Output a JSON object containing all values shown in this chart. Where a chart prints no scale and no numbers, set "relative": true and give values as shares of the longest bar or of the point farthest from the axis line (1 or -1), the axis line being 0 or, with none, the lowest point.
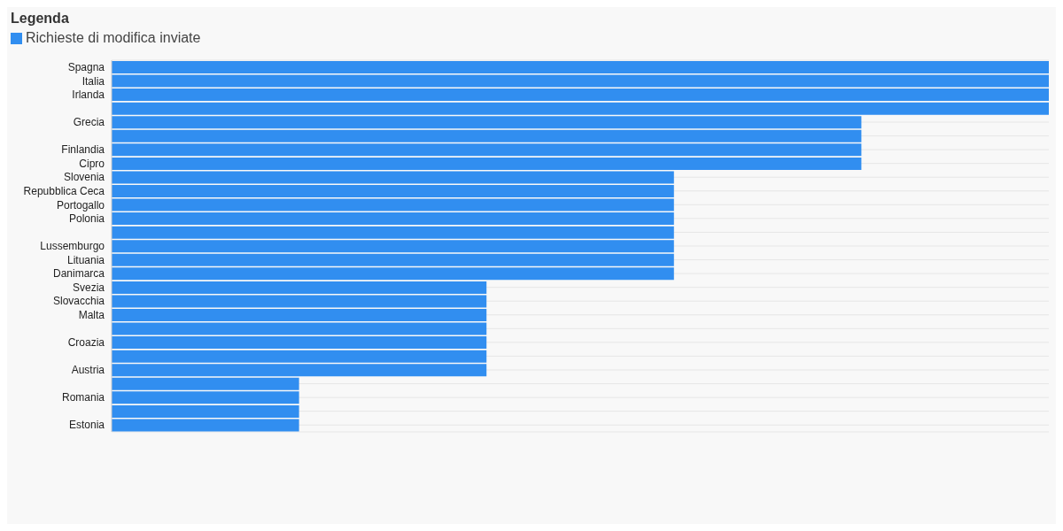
{
  "chart_data": {
    "type": "bar",
    "orientation": "horizontal",
    "relative": true,
    "legend_title": "Legenda",
    "legend": "top left",
    "grid": "y",
    "categories": [
      "Spagna",
      "Italia",
      "Irlanda",
      null,
      "Grecia",
      null,
      "Finlandia",
      "Cipro",
      "Slovenia",
      "Repubblica Ceca",
      "Portogallo",
      "Polonia",
      null,
      "Lussemburgo",
      "Lituania",
      "Danimarca",
      "Svezia",
      "Slovacchia",
      "Malta",
      null,
      "Croazia",
      null,
      "Austria",
      null,
      "Romania",
      null,
      "Estonia"
    ],
    "series": [
      {
        "name": "Richieste di modifica inviate",
        "color": "#318ef0",
        "values": [
          1,
          1,
          1,
          1,
          0.8,
          0.8,
          0.8,
          0.8,
          0.6,
          0.6,
          0.6,
          0.6,
          0.6,
          0.6,
          0.6,
          0.6,
          0.4,
          0.4,
          0.4,
          0.4,
          0.4,
          0.4,
          0.4,
          0.2,
          0.2,
          0.2,
          0.2
        ]
      }
    ]
  }
}
